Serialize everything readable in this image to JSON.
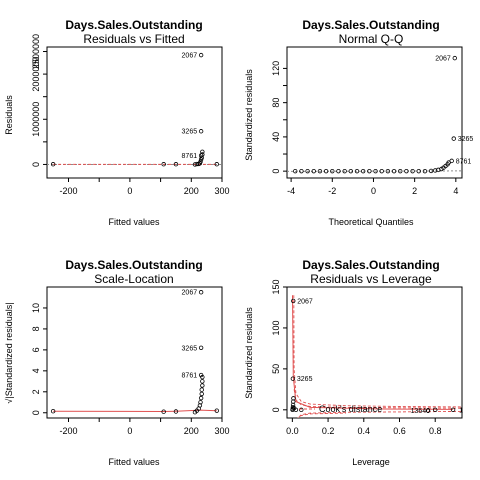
{
  "chart_data": [
    {
      "type": "scatter",
      "name": "residuals-vs-fitted",
      "title": "Days.Sales.Outstanding",
      "subtitle": "Residuals vs Fitted",
      "xlabel": "Fitted values",
      "ylabel": "Residuals",
      "xlim": [
        -270,
        300
      ],
      "ylim": [
        -300000,
        2600000
      ],
      "xticks": [
        -200,
        -100,
        0,
        100,
        200,
        300
      ],
      "xtick_labels": [
        "-200",
        "",
        "0",
        "",
        "200",
        "300"
      ],
      "yticks": [
        0,
        500000,
        1000000,
        1500000,
        2000000,
        2500000
      ],
      "ytick_labels": [
        "0",
        "",
        "1000000",
        "",
        "2000000",
        "2500000"
      ],
      "reference_line": {
        "type": "h",
        "value": 0,
        "color": "#8c8c8c",
        "dash": "2,2"
      },
      "trend_line": {
        "x": [
          -250,
          100,
          200,
          240,
          280
        ],
        "y": [
          0,
          0,
          0,
          0,
          0
        ],
        "color": "#e05050",
        "dash": "3,2"
      },
      "points": [
        {
          "x": -250,
          "y": 5000
        },
        {
          "x": 110,
          "y": 5000
        },
        {
          "x": 150,
          "y": 5000
        },
        {
          "x": 212,
          "y": 0
        },
        {
          "x": 218,
          "y": 8000
        },
        {
          "x": 224,
          "y": 12000
        },
        {
          "x": 228,
          "y": 25000
        },
        {
          "x": 230,
          "y": 60000
        },
        {
          "x": 232,
          "y": 110000
        },
        {
          "x": 234,
          "y": 150000
        },
        {
          "x": 236,
          "y": 220000
        },
        {
          "x": 236,
          "y": 280000
        },
        {
          "x": 283,
          "y": 5000
        },
        {
          "x": 232,
          "y": 2420000,
          "label": "2067"
        },
        {
          "x": 232,
          "y": 735000,
          "label": "3265"
        },
        {
          "x": 232,
          "y": 200000,
          "label": "8761"
        }
      ]
    },
    {
      "type": "scatter",
      "name": "normal-qq",
      "title": "Days.Sales.Outstanding",
      "subtitle": "Normal Q-Q",
      "xlabel": "Theoretical Quantiles",
      "ylabel": "Standardized residuals",
      "xlim": [
        -4.2,
        4.3
      ],
      "ylim": [
        -8,
        145
      ],
      "xticks": [
        -4,
        -2,
        0,
        2,
        4
      ],
      "xtick_labels": [
        "-4",
        "-2",
        "0",
        "2",
        "4"
      ],
      "yticks": [
        0,
        20,
        40,
        60,
        80,
        100,
        120
      ],
      "ytick_labels": [
        "0",
        "",
        "40",
        "",
        "80",
        "",
        "120"
      ],
      "reference_line": {
        "type": "qq",
        "x": [
          -4.2,
          4.3
        ],
        "y": [
          -0.3,
          0.3
        ],
        "color": "#8c8c8c",
        "dash": "2,2"
      },
      "points": [
        {
          "x": -3.8,
          "y": 0
        },
        {
          "x": -3.5,
          "y": 0
        },
        {
          "x": -3.2,
          "y": 0
        },
        {
          "x": -2.9,
          "y": 0
        },
        {
          "x": -2.6,
          "y": 0
        },
        {
          "x": -2.3,
          "y": 0
        },
        {
          "x": -2.0,
          "y": 0
        },
        {
          "x": -1.7,
          "y": 0
        },
        {
          "x": -1.4,
          "y": 0
        },
        {
          "x": -1.1,
          "y": 0
        },
        {
          "x": -0.8,
          "y": 0
        },
        {
          "x": -0.5,
          "y": 0
        },
        {
          "x": -0.2,
          "y": 0
        },
        {
          "x": 0.1,
          "y": 0
        },
        {
          "x": 0.4,
          "y": 0
        },
        {
          "x": 0.7,
          "y": 0
        },
        {
          "x": 1.0,
          "y": 0
        },
        {
          "x": 1.3,
          "y": 0
        },
        {
          "x": 1.6,
          "y": 0
        },
        {
          "x": 1.9,
          "y": 0
        },
        {
          "x": 2.2,
          "y": 0
        },
        {
          "x": 2.5,
          "y": 0
        },
        {
          "x": 2.8,
          "y": 0.3
        },
        {
          "x": 3.0,
          "y": 0.8
        },
        {
          "x": 3.15,
          "y": 1.5
        },
        {
          "x": 3.3,
          "y": 2.5
        },
        {
          "x": 3.4,
          "y": 4
        },
        {
          "x": 3.5,
          "y": 6
        },
        {
          "x": 3.6,
          "y": 8
        },
        {
          "x": 3.65,
          "y": 10
        },
        {
          "x": 3.95,
          "y": 132,
          "label": "2067"
        },
        {
          "x": 3.9,
          "y": 38,
          "label": "3265"
        },
        {
          "x": 3.8,
          "y": 12,
          "label": "8761"
        }
      ]
    },
    {
      "type": "scatter",
      "name": "scale-location",
      "title": "Days.Sales.Outstanding",
      "subtitle": "Scale-Location",
      "xlabel": "Fitted values",
      "ylabel": "√|Standardized residuals|",
      "xlim": [
        -270,
        300
      ],
      "ylim": [
        -0.5,
        12
      ],
      "xticks": [
        -200,
        -100,
        0,
        100,
        200,
        300
      ],
      "xtick_labels": [
        "-200",
        "",
        "0",
        "",
        "200",
        "300"
      ],
      "yticks": [
        0,
        2,
        4,
        6,
        8,
        10
      ],
      "ytick_labels": [
        "0",
        "2",
        "4",
        "6",
        "8",
        "10"
      ],
      "trend_line": {
        "x": [
          -250,
          110,
          150,
          230,
          283
        ],
        "y": [
          0.15,
          0.12,
          0.15,
          0.25,
          0.2
        ],
        "color": "#e05050",
        "dash": ""
      },
      "points": [
        {
          "x": -250,
          "y": 0.15
        },
        {
          "x": 110,
          "y": 0.1
        },
        {
          "x": 150,
          "y": 0.12
        },
        {
          "x": 212,
          "y": 0.05
        },
        {
          "x": 218,
          "y": 0.2
        },
        {
          "x": 224,
          "y": 0.4
        },
        {
          "x": 228,
          "y": 0.7
        },
        {
          "x": 230,
          "y": 1.0
        },
        {
          "x": 232,
          "y": 1.4
        },
        {
          "x": 234,
          "y": 1.8
        },
        {
          "x": 234,
          "y": 2.2
        },
        {
          "x": 236,
          "y": 2.6
        },
        {
          "x": 236,
          "y": 3.0
        },
        {
          "x": 236,
          "y": 3.4
        },
        {
          "x": 283,
          "y": 0.2
        },
        {
          "x": 232,
          "y": 11.5,
          "label": "2067"
        },
        {
          "x": 232,
          "y": 6.2,
          "label": "3265"
        },
        {
          "x": 232,
          "y": 3.6,
          "label": "8761"
        }
      ]
    },
    {
      "type": "scatter",
      "name": "residuals-vs-leverage",
      "title": "Days.Sales.Outstanding",
      "subtitle": "Residuals vs Leverage",
      "xlabel": "Leverage",
      "ylabel": "Standardized residuals",
      "xlim": [
        -0.03,
        0.95
      ],
      "ylim": [
        -10,
        150
      ],
      "xticks": [
        0.0,
        0.2,
        0.4,
        0.6,
        0.8
      ],
      "xtick_labels": [
        "0.0",
        "0.2",
        "0.4",
        "0.6",
        "0.8"
      ],
      "yticks": [
        0,
        50,
        100,
        150
      ],
      "ytick_labels": [
        "0",
        "50",
        "100",
        "150"
      ],
      "legend": "Cook's distance",
      "cooks_contours": [
        {
          "x": [
            0.008,
            0.01,
            0.02,
            0.05,
            0.1,
            0.3,
            0.6,
            0.95
          ],
          "y": [
            140,
            50,
            20,
            10,
            7,
            5,
            4,
            3.5
          ]
        },
        {
          "x": [
            0.01,
            0.02,
            0.05,
            0.1,
            0.3,
            0.6,
            0.95
          ],
          "y": [
            25,
            12,
            6,
            4,
            3,
            2.5,
            2
          ]
        },
        {
          "x": [
            0.01,
            0.02,
            0.05,
            0.1,
            0.3,
            0.6,
            0.95
          ],
          "y": [
            -25,
            -12,
            -6,
            -4,
            -3,
            -2.5,
            -2
          ]
        },
        {
          "x": [
            0.008,
            0.01,
            0.02,
            0.05,
            0.1,
            0.3
          ],
          "y": [
            -60,
            -25,
            -12,
            -7,
            -5,
            -4
          ]
        }
      ],
      "trend_line": {
        "x": [
          0.001,
          0.005,
          0.02,
          0.1,
          0.5,
          0.9
        ],
        "y": [
          140,
          40,
          10,
          3,
          1,
          0.5
        ],
        "color": "#e05050",
        "dash": ""
      },
      "points": [
        {
          "x": 0.001,
          "y": 0
        },
        {
          "x": 0.002,
          "y": 1
        },
        {
          "x": 0.003,
          "y": 3
        },
        {
          "x": 0.004,
          "y": 6
        },
        {
          "x": 0.005,
          "y": 10
        },
        {
          "x": 0.006,
          "y": 14
        },
        {
          "x": 0.01,
          "y": 2
        },
        {
          "x": 0.02,
          "y": 0
        },
        {
          "x": 0.05,
          "y": 0
        },
        {
          "x": 0.8,
          "y": 0
        },
        {
          "x": 0.005,
          "y": 133,
          "label": "2067"
        },
        {
          "x": 0.003,
          "y": 38,
          "label": "3265"
        },
        {
          "x": 0.9,
          "y": 0,
          "label": "1"
        },
        {
          "x": 0.76,
          "y": -1,
          "label": "13640"
        }
      ]
    }
  ]
}
